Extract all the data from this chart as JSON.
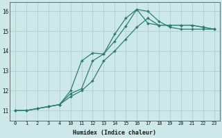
{
  "xlabel": "Humidex (Indice chaleur)",
  "background_color": "#cce8e8",
  "grid_color": "#b0cccc",
  "line_color": "#2e7d6e",
  "xtick_labels": [
    "0",
    "1",
    "2",
    "3",
    "4",
    "10",
    "11",
    "12",
    "13",
    "14",
    "15",
    "16",
    "17",
    "18",
    "19",
    "20",
    "21",
    "22",
    "23"
  ],
  "yticks": [
    11,
    12,
    13,
    14,
    15,
    16
  ],
  "ylim": [
    10.5,
    16.45
  ],
  "line1_y": [
    11.0,
    11.0,
    11.1,
    11.2,
    11.3,
    12.0,
    13.5,
    13.9,
    13.85,
    14.85,
    15.65,
    16.1,
    15.4,
    15.3,
    15.3,
    15.3,
    15.3,
    15.2,
    15.1
  ],
  "line2_y": [
    11.0,
    11.0,
    11.1,
    11.2,
    11.3,
    11.85,
    12.1,
    13.5,
    13.85,
    14.5,
    15.25,
    16.1,
    16.0,
    15.5,
    15.2,
    15.1,
    15.1,
    15.1,
    15.1
  ],
  "line3_y": [
    11.0,
    11.0,
    11.1,
    11.2,
    11.3,
    11.7,
    12.0,
    12.5,
    13.5,
    14.0,
    14.6,
    15.2,
    15.65,
    15.3,
    15.3,
    15.3,
    15.3,
    15.2,
    15.1
  ]
}
